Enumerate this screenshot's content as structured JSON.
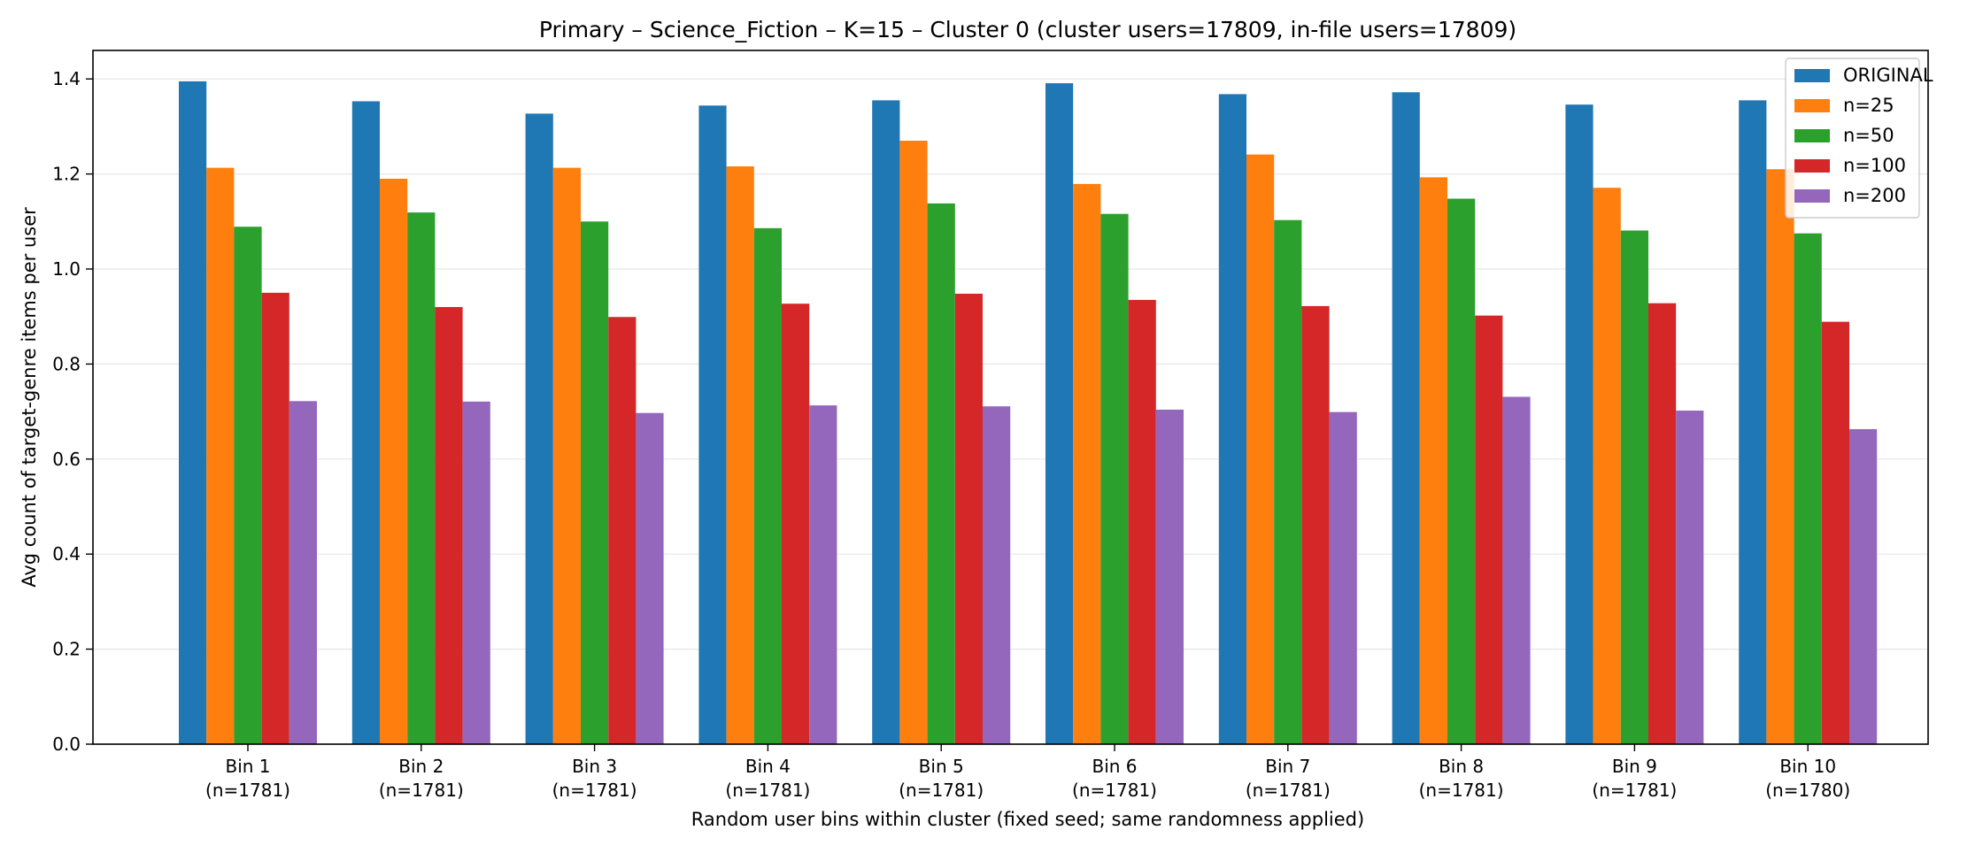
{
  "chart_data": {
    "type": "bar",
    "title": "Primary – Science_Fiction – K=15 – Cluster 0 (cluster users=17809, in-file users=17809)",
    "xlabel": "Random user bins within cluster (fixed seed; same randomness applied)",
    "ylabel": "Avg count of target-genre items per user",
    "ylim": [
      0,
      1.46
    ],
    "yticks": [
      "0.0",
      "0.2",
      "0.4",
      "0.6",
      "0.8",
      "1.0",
      "1.2",
      "1.4"
    ],
    "grid": "horizontal",
    "legend_position": "top-right",
    "categories": [
      {
        "name": "Bin 1",
        "count": "(n=1781)"
      },
      {
        "name": "Bin 2",
        "count": "(n=1781)"
      },
      {
        "name": "Bin 3",
        "count": "(n=1781)"
      },
      {
        "name": "Bin 4",
        "count": "(n=1781)"
      },
      {
        "name": "Bin 5",
        "count": "(n=1781)"
      },
      {
        "name": "Bin 6",
        "count": "(n=1781)"
      },
      {
        "name": "Bin 7",
        "count": "(n=1781)"
      },
      {
        "name": "Bin 8",
        "count": "(n=1781)"
      },
      {
        "name": "Bin 9",
        "count": "(n=1781)"
      },
      {
        "name": "Bin 10",
        "count": "(n=1780)"
      }
    ],
    "series": [
      {
        "name": "ORIGINAL",
        "color": "#1f77b4",
        "values": [
          1.395,
          1.353,
          1.327,
          1.344,
          1.355,
          1.391,
          1.368,
          1.372,
          1.346,
          1.355
        ]
      },
      {
        "name": "n=25",
        "color": "#ff7f0e",
        "values": [
          1.213,
          1.19,
          1.213,
          1.216,
          1.27,
          1.179,
          1.241,
          1.193,
          1.171,
          1.21
        ]
      },
      {
        "name": "n=50",
        "color": "#2ca02c",
        "values": [
          1.089,
          1.119,
          1.1,
          1.086,
          1.138,
          1.116,
          1.103,
          1.148,
          1.081,
          1.075
        ]
      },
      {
        "name": "n=100",
        "color": "#d62728",
        "values": [
          0.95,
          0.92,
          0.899,
          0.927,
          0.948,
          0.935,
          0.922,
          0.902,
          0.928,
          0.889
        ]
      },
      {
        "name": "n=200",
        "color": "#9467bd",
        "values": [
          0.722,
          0.721,
          0.697,
          0.713,
          0.711,
          0.704,
          0.699,
          0.731,
          0.702,
          0.663
        ]
      }
    ]
  }
}
